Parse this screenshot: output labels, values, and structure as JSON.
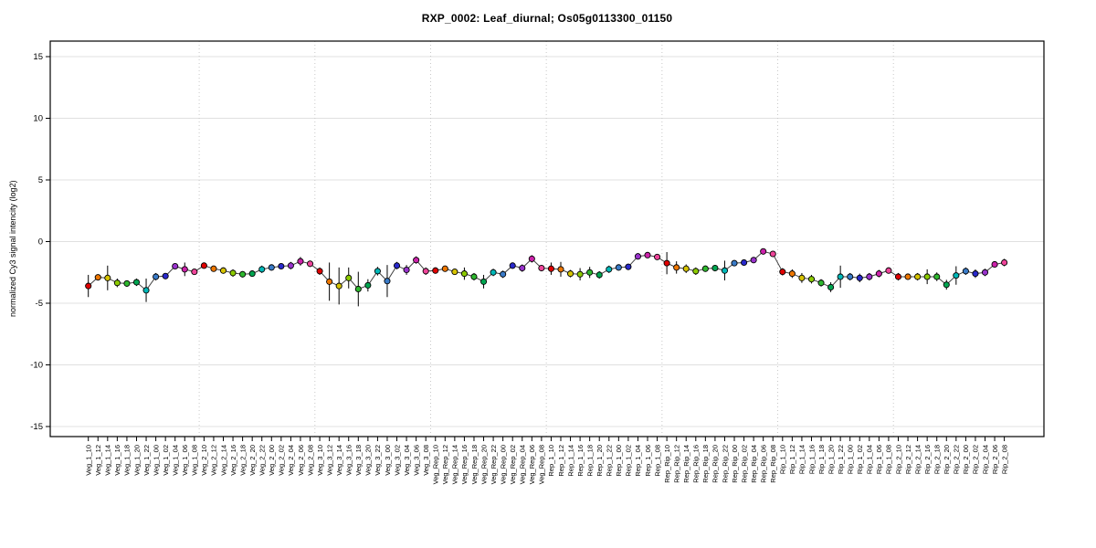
{
  "chart_data": {
    "type": "line",
    "title": "RXP_0002: Leaf_diurnal; Os05g0113300_01150",
    "ylabel": "normalized Cy3 signal intencity (log2)",
    "xlabel": "",
    "ylim": [
      -15.9,
      16.3
    ],
    "yticks": [
      -15,
      -10,
      -5,
      0,
      5,
      10,
      15
    ],
    "grid": {
      "horizontal": "solid-light",
      "vertical": "dotted-at-group-boundaries"
    },
    "legend": "none",
    "categories": [
      "Veg_1_10",
      "Veg_1_12",
      "Veg_1_14",
      "Veg_1_16",
      "Veg_1_18",
      "Veg_1_20",
      "Veg_1_22",
      "Veg_1_00",
      "Veg_1_02",
      "Veg_1_04",
      "Veg_1_06",
      "Veg_1_08",
      "Veg_2_10",
      "Veg_2_12",
      "Veg_2_14",
      "Veg_2_16",
      "Veg_2_18",
      "Veg_2_20",
      "Veg_2_22",
      "Veg_2_00",
      "Veg_2_02",
      "Veg_2_04",
      "Veg_2_06",
      "Veg_2_08",
      "Veg_3_10",
      "Veg_3_12",
      "Veg_3_14",
      "Veg_3_16",
      "Veg_3_18",
      "Veg_3_20",
      "Veg_3_22",
      "Veg_3_00",
      "Veg_3_02",
      "Veg_3_04",
      "Veg_3_06",
      "Veg_3_08",
      "Veg_Rep_10",
      "Veg_Rep_12",
      "Veg_Rep_14",
      "Veg_Rep_16",
      "Veg_Rep_18",
      "Veg_Rep_20",
      "Veg_Rep_22",
      "Veg_Rep_00",
      "Veg_Rep_02",
      "Veg_Rep_04",
      "Veg_Rep_06",
      "Veg_Rep_08",
      "Rep_1_10",
      "Rep_1_12",
      "Rep_1_14",
      "Rep_1_16",
      "Rep_1_18",
      "Rep_1_20",
      "Rep_1_22",
      "Rep_1_00",
      "Rep_1_02",
      "Rep_1_04",
      "Rep_1_06",
      "Rep_1_08",
      "Rep_Rip_10",
      "Rep_Rip_12",
      "Rep_Rip_14",
      "Rep_Rip_16",
      "Rep_Rip_18",
      "Rep_Rip_20",
      "Rep_Rip_22",
      "Rep_Rip_00",
      "Rep_Rip_02",
      "Rep_Rip_04",
      "Rep_Rip_06",
      "Rep_Rip_08",
      "Rip_1_10",
      "Rip_1_12",
      "Rip_1_14",
      "Rip_1_16",
      "Rip_1_18",
      "Rip_1_20",
      "Rip_1_22",
      "Rip_1_00",
      "Rip_1_02",
      "Rip_1_04",
      "Rip_1_06",
      "Rip_1_08",
      "Rip_2_10",
      "Rip_2_12",
      "Rip_2_14",
      "Rip_2_16",
      "Rip_2_18",
      "Rip_2_20",
      "Rip_2_22",
      "Rip_2_00",
      "Rip_2_02",
      "Rip_2_04",
      "Rip_2_06",
      "Rip_2_08"
    ],
    "values": [
      -3.6,
      -2.9,
      -2.95,
      -3.35,
      -3.4,
      -3.3,
      -3.95,
      -2.85,
      -2.8,
      -2.0,
      -2.25,
      -2.45,
      -1.95,
      -2.2,
      -2.35,
      -2.55,
      -2.65,
      -2.6,
      -2.25,
      -2.1,
      -2.0,
      -1.95,
      -1.6,
      -1.8,
      -2.4,
      -3.25,
      -3.6,
      -2.95,
      -3.85,
      -3.55,
      -2.4,
      -3.2,
      -1.95,
      -2.3,
      -1.5,
      -2.4,
      -2.35,
      -2.2,
      -2.45,
      -2.6,
      -2.85,
      -3.25,
      -2.5,
      -2.65,
      -1.95,
      -2.15,
      -1.4,
      -2.15,
      -2.2,
      -2.25,
      -2.6,
      -2.65,
      -2.5,
      -2.7,
      -2.25,
      -2.1,
      -2.05,
      -1.2,
      -1.1,
      -1.25,
      -1.75,
      -2.1,
      -2.2,
      -2.4,
      -2.2,
      -2.15,
      -2.35,
      -1.75,
      -1.7,
      -1.5,
      -0.8,
      -1.0,
      -2.45,
      -2.6,
      -2.95,
      -3.05,
      -3.35,
      -3.7,
      -2.85,
      -2.85,
      -2.95,
      -2.85,
      -2.6,
      -2.35,
      -2.85,
      -2.85,
      -2.85,
      -2.85,
      -2.85,
      -3.5,
      -2.75,
      -2.4,
      -2.6,
      -2.5,
      -1.85,
      -1.7
    ],
    "errors": [
      0.9,
      0.2,
      1.0,
      0.35,
      0.25,
      0.3,
      0.95,
      0.3,
      0.2,
      0.2,
      0.55,
      0.2,
      0.2,
      0.2,
      0.25,
      0.3,
      0.25,
      0.25,
      0.3,
      0.25,
      0.2,
      0.3,
      0.35,
      0.25,
      0.3,
      1.55,
      1.5,
      0.85,
      1.4,
      0.5,
      0.35,
      1.3,
      0.3,
      0.4,
      0.3,
      0.3,
      0.25,
      0.2,
      0.25,
      0.5,
      0.3,
      0.55,
      0.3,
      0.3,
      0.25,
      0.3,
      0.3,
      0.25,
      0.5,
      0.6,
      0.3,
      0.5,
      0.45,
      0.3,
      0.3,
      0.25,
      0.25,
      0.25,
      0.2,
      0.2,
      0.9,
      0.5,
      0.35,
      0.3,
      0.25,
      0.25,
      0.8,
      0.25,
      0.2,
      0.25,
      0.2,
      0.2,
      0.3,
      0.35,
      0.4,
      0.35,
      0.3,
      0.4,
      0.9,
      0.3,
      0.35,
      0.3,
      0.3,
      0.25,
      0.3,
      0.25,
      0.3,
      0.6,
      0.35,
      0.4,
      0.75,
      0.3,
      0.35,
      0.3,
      0.25,
      0.3
    ],
    "point_color_by_hour": {
      "10": "#e00000",
      "12": "#ee7700",
      "14": "#d6c300",
      "16": "#8ccb00",
      "18": "#2eb82e",
      "20": "#00a550",
      "22": "#00b8b8",
      "00": "#3a7bc8",
      "02": "#2929cc",
      "04": "#9933cc",
      "06": "#cc22aa",
      "08": "#ee4499"
    },
    "line_color": "#404040",
    "error_bar_color": "#000000",
    "marker_outline_color": "#000000",
    "gridline_color": "#e0e0e0",
    "separator_color": "#c8c8c8",
    "frame_color": "#000000",
    "group_separators_after_index": [
      11,
      23,
      35,
      47,
      59,
      71,
      83
    ]
  }
}
